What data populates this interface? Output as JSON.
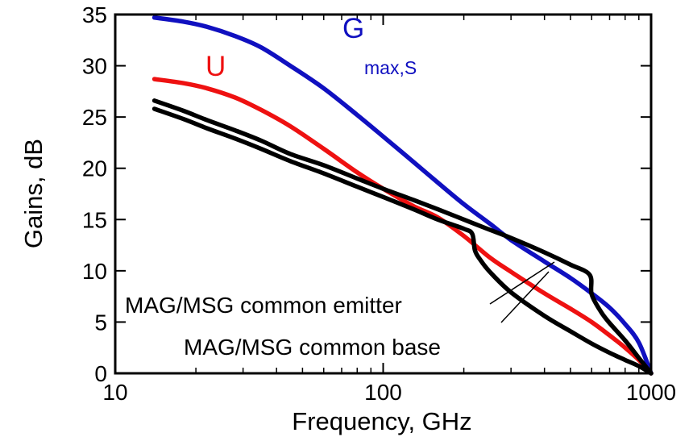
{
  "chart_data": {
    "type": "line",
    "title": "",
    "xlabel": "Frequency, GHz",
    "ylabel": "Gains, dB",
    "xscale": "log",
    "xlim": [
      10,
      1000
    ],
    "ylim": [
      0,
      35
    ],
    "x_ticks": [
      10,
      100,
      1000
    ],
    "x_tick_labels": [
      "10",
      "100",
      "1000"
    ],
    "y_ticks": [
      0,
      5,
      10,
      15,
      20,
      25,
      30,
      35
    ],
    "y_tick_labels": [
      "0",
      "5",
      "10",
      "15",
      "20",
      "25",
      "30",
      "35"
    ],
    "grid": false,
    "series": [
      {
        "name": "G",
        "name_sub": "max,S",
        "color": "#1010c0",
        "x": [
          14,
          18,
          22,
          28,
          35,
          45,
          60,
          80,
          100,
          130,
          160,
          200,
          250,
          300,
          400,
          500,
          600,
          700,
          800,
          900,
          1000
        ],
        "y": [
          34.7,
          34.3,
          33.8,
          32.9,
          31.8,
          30.0,
          27.8,
          25.2,
          23.1,
          20.6,
          18.6,
          16.5,
          14.6,
          13.0,
          10.9,
          9.3,
          7.8,
          6.4,
          4.8,
          3.0,
          0
        ]
      },
      {
        "name": "U",
        "color": "#ee1111",
        "x": [
          14,
          18,
          22,
          28,
          35,
          45,
          60,
          80,
          100,
          130,
          160,
          200,
          250,
          300,
          400,
          500,
          600,
          700,
          800,
          900,
          1000
        ],
        "y": [
          28.7,
          28.3,
          27.8,
          26.9,
          25.7,
          24.1,
          21.9,
          19.6,
          18.0,
          16.3,
          15.2,
          13.4,
          11.3,
          9.9,
          7.8,
          6.3,
          5.0,
          3.7,
          2.5,
          1.3,
          0
        ]
      },
      {
        "name": "MAG/MSG common emitter",
        "color": "#000000",
        "x": [
          14,
          18,
          22,
          28,
          35,
          45,
          60,
          80,
          100,
          130,
          160,
          200,
          250,
          300,
          400,
          500,
          590,
          600,
          650,
          700,
          800,
          900,
          1000
        ],
        "y": [
          26.6,
          25.6,
          24.7,
          23.7,
          22.7,
          21.4,
          20.3,
          19.0,
          18.0,
          16.9,
          16.0,
          15.0,
          14.0,
          13.2,
          11.8,
          10.6,
          9.6,
          7.7,
          6.0,
          4.9,
          3.2,
          1.5,
          0
        ]
      },
      {
        "name": "MAG/MSG common base",
        "color": "#000000",
        "x": [
          14,
          18,
          22,
          28,
          35,
          45,
          60,
          80,
          100,
          130,
          160,
          200,
          215,
          220,
          230,
          250,
          300,
          400,
          500,
          600,
          700,
          800,
          900,
          1000
        ],
        "y": [
          25.8,
          24.8,
          23.9,
          22.9,
          21.9,
          20.7,
          19.5,
          18.2,
          17.2,
          16.0,
          15.0,
          14.1,
          13.6,
          12.0,
          11.1,
          9.9,
          7.9,
          5.6,
          4.1,
          2.9,
          2.0,
          1.3,
          0.7,
          0
        ]
      }
    ],
    "annotations": [
      "MAG/MSG common emitter",
      "MAG/MSG common base"
    ]
  }
}
